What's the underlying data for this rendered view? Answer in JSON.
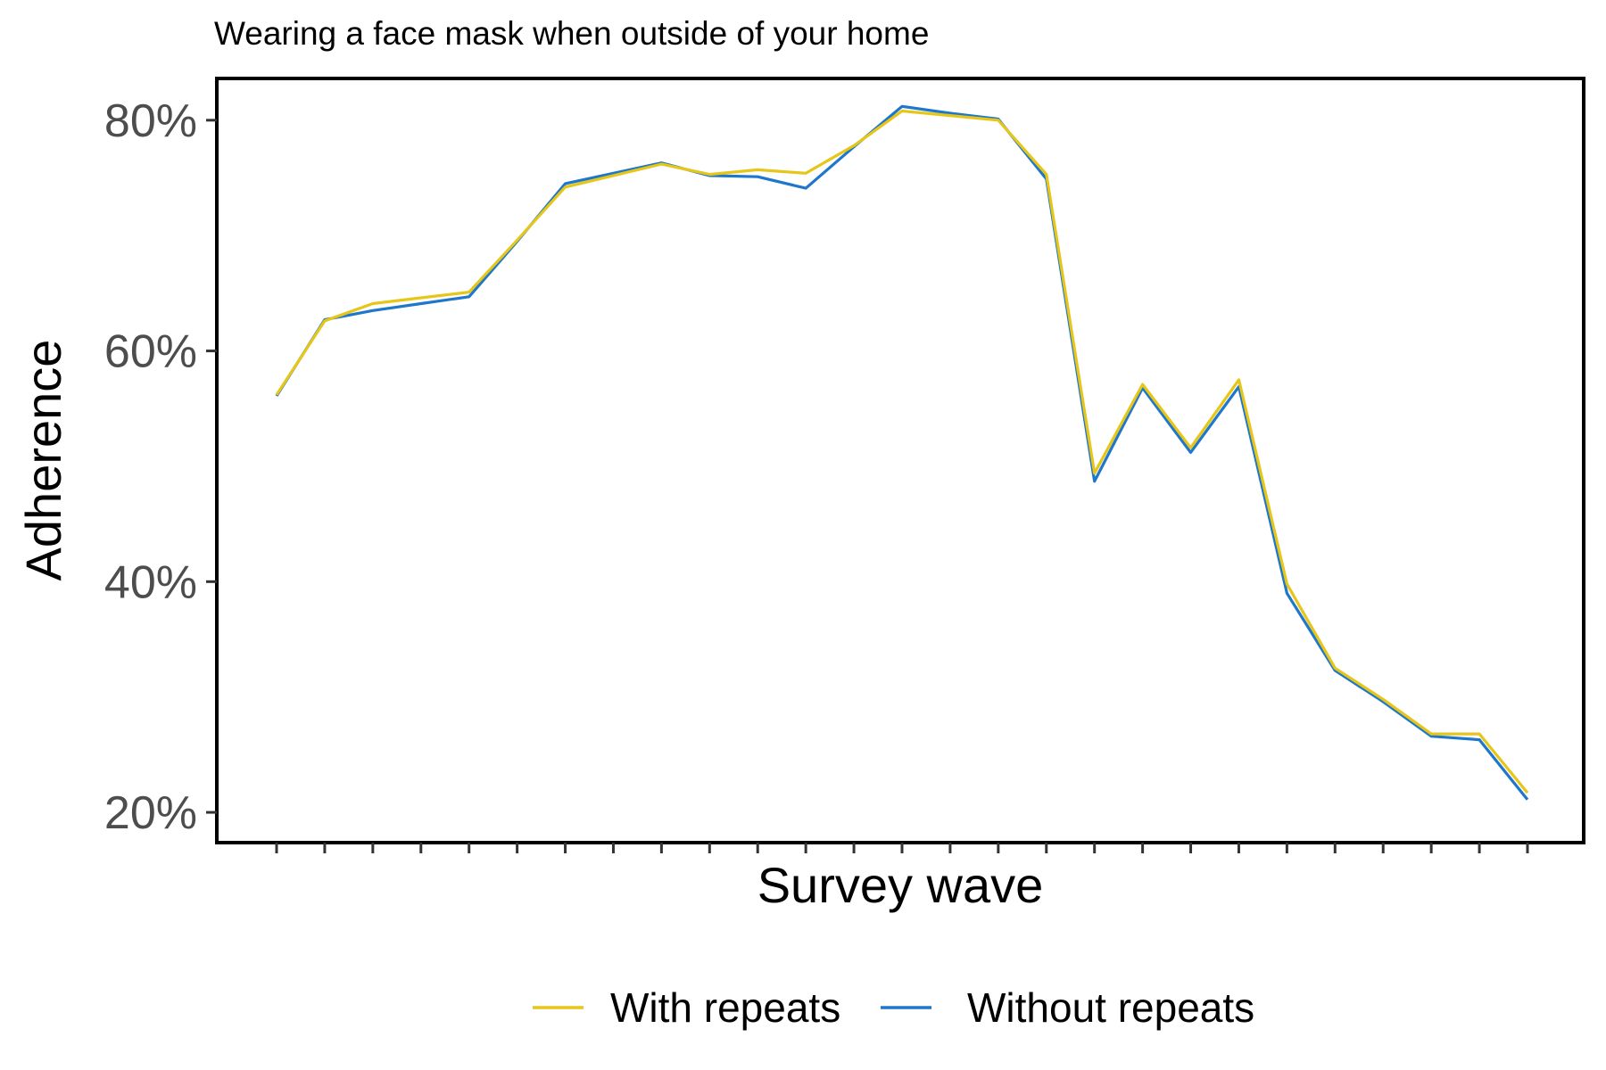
{
  "chart_data": {
    "type": "line",
    "title": "Wearing a face mask when outside of your home",
    "xlabel": "Survey wave",
    "ylabel": "Adherence",
    "x": [
      1,
      2,
      3,
      4,
      5,
      6,
      7,
      8,
      9,
      10,
      11,
      12,
      13,
      14,
      15,
      16,
      17,
      18,
      19,
      20,
      21,
      22,
      23,
      24,
      25,
      26,
      27
    ],
    "ylim": [
      0.19,
      0.83
    ],
    "yticks": [
      0.2,
      0.4,
      0.6,
      0.8
    ],
    "ytick_labels": [
      "20%",
      "40%",
      "60%",
      "80%"
    ],
    "grid": false,
    "legend_position": "bottom",
    "series": [
      {
        "name": "With repeats",
        "color": "#e6c619",
        "values": [
          0.562,
          0.626,
          0.641,
          0.646,
          0.651,
          0.696,
          0.742,
          0.752,
          0.762,
          0.753,
          0.757,
          0.754,
          0.778,
          0.808,
          0.804,
          0.8,
          0.753,
          0.494,
          0.571,
          0.516,
          0.575,
          0.398,
          0.325,
          0.298,
          0.268,
          0.268,
          0.217
        ]
      },
      {
        "name": "Without repeats",
        "color": "#1f77cc",
        "values": [
          0.561,
          0.627,
          0.635,
          0.641,
          0.647,
          0.695,
          0.745,
          0.754,
          0.763,
          0.752,
          0.751,
          0.741,
          0.777,
          0.812,
          0.806,
          0.801,
          0.749,
          0.487,
          0.568,
          0.512,
          0.569,
          0.39,
          0.323,
          0.296,
          0.266,
          0.263,
          0.211
        ]
      }
    ]
  }
}
